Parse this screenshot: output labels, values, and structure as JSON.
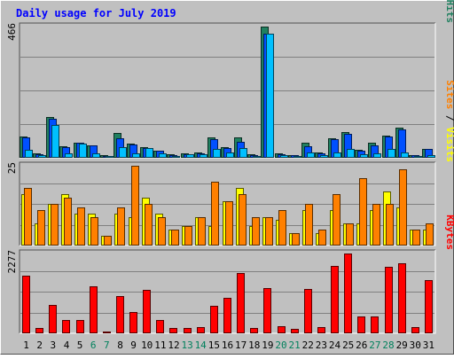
{
  "chart_data": {
    "title": "Daily usage for July 2019",
    "days": [
      "1",
      "2",
      "3",
      "4",
      "5",
      "6",
      "7",
      "8",
      "9",
      "10",
      "11",
      "12",
      "13",
      "14",
      "15",
      "16",
      "17",
      "18",
      "19",
      "20",
      "21",
      "22",
      "23",
      "24",
      "25",
      "26",
      "27",
      "28",
      "29",
      "30",
      "31"
    ],
    "weekend_days": [
      "6",
      "7",
      "13",
      "14",
      "20",
      "21",
      "27",
      "28"
    ],
    "panels": [
      {
        "type": "bar",
        "max_label": "466",
        "ymax": 466,
        "legend": [
          {
            "label": "Pages",
            "color": "#00c0ff"
          },
          {
            "label": " / ",
            "color": "#000000"
          },
          {
            "label": "Files",
            "color": "#0050ff"
          },
          {
            "label": " / ",
            "color": "#000000"
          },
          {
            "label": "Hits",
            "color": "#208060"
          }
        ],
        "series": [
          {
            "name": "Hits",
            "color": "#208060",
            "values": [
              76,
              16,
              145,
              40,
              55,
              45,
              8,
              88,
              50,
              38,
              26,
              12,
              15,
              18,
              72,
              38,
              72,
              12,
              466,
              16,
              10,
              52,
              18,
              68,
              90,
              28,
              52,
              80,
              108,
              10,
              33
            ]
          },
          {
            "name": "Files",
            "color": "#0050ff",
            "values": [
              72,
              13,
              140,
              39,
              53,
              43,
              6,
              70,
              48,
              36,
              24,
              11,
              14,
              16,
              66,
              36,
              58,
              11,
              440,
              14,
              9,
              42,
              16,
              66,
              86,
              26,
              44,
              76,
              100,
              8,
              30
            ]
          },
          {
            "name": "Pages",
            "color": "#00c0ff",
            "values": [
              28,
              8,
              116,
              16,
              50,
              16,
              5,
              38,
              16,
              34,
              16,
              7,
              14,
              14,
              33,
              20,
              35,
              7,
              440,
              8,
              5,
              20,
              8,
              20,
              33,
              14,
              16,
              32,
              20,
              5,
              10
            ]
          }
        ]
      },
      {
        "type": "bar",
        "max_label": "25",
        "ymax": 25,
        "legend": [
          {
            "label": "Sites",
            "color": "#ff8000"
          },
          {
            "label": " / ",
            "color": "#000000"
          },
          {
            "label": "Visits",
            "color": "#ffff00"
          }
        ],
        "series": [
          {
            "name": "Visits",
            "color": "#ffff00",
            "values": [
              16,
              7,
              13,
              16,
              10,
              10,
              3,
              10,
              9,
              15,
              10,
              5,
              6,
              9,
              6,
              14,
              18,
              6,
              9,
              8,
              4,
              11,
              4,
              11,
              7,
              7,
              11,
              17,
              12,
              5,
              5
            ]
          },
          {
            "name": "Sites",
            "color": "#ff8000",
            "values": [
              18,
              11,
              13,
              15,
              12,
              9,
              3,
              12,
              25,
              13,
              9,
              5,
              6,
              9,
              20,
              14,
              16,
              9,
              9,
              11,
              4,
              13,
              5,
              16,
              7,
              21,
              13,
              13,
              24,
              5,
              7
            ]
          }
        ]
      },
      {
        "type": "bar",
        "max_label": "2277",
        "ymax": 2277,
        "legend": [
          {
            "label": "KBytes",
            "color": "#ff0000"
          }
        ],
        "series": [
          {
            "name": "KBytes",
            "color": "#ff0000",
            "values": [
              1650,
              150,
              820,
              390,
              390,
              1340,
              50,
              1050,
              610,
              1230,
              390,
              140,
              150,
              170,
              790,
              1010,
              1710,
              150,
              1280,
              210,
              130,
              1260,
              170,
              1920,
              2277,
              470,
              470,
              1890,
              1990,
              180,
              1520
            ]
          }
        ]
      }
    ]
  }
}
